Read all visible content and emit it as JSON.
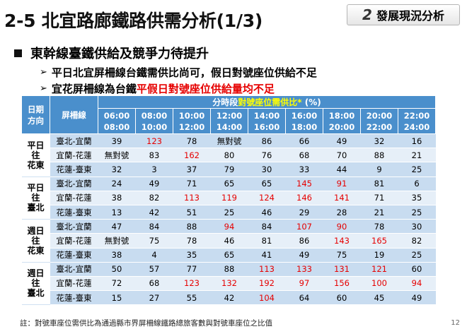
{
  "title": "2-5 北宜路廊鐵路供需分析(1/3)",
  "badge": {
    "number": "2",
    "label": "發展現況分析"
  },
  "bullet_main": "東幹線臺鐵供給及競爭力待提升",
  "bullets": [
    {
      "text": "平日北宜屏柵線台鐵需供比尚可，假日對號座位供給不足",
      "highlight": ""
    },
    {
      "text": "宜花屏柵線為台鐵",
      "highlight": "平假日對號座位供給量均不足"
    }
  ],
  "table": {
    "col_group": "日期\n方向",
    "col_screen": "屏柵線",
    "super_header_prefix": "分時段",
    "super_header_highlight": "對號座位需供比*",
    "super_header_suffix": " (%)",
    "times": [
      "06:00\n08:00",
      "08:00\n10:00",
      "10:00\n12:00",
      "12:00\n14:00",
      "14:00\n16:00",
      "16:00\n18:00",
      "18:00\n20:00",
      "20:00\n22:00",
      "22:00\n24:00"
    ],
    "groups": [
      {
        "label": "平日\n往\n花東",
        "rows": [
          {
            "screen": "臺北-宜蘭",
            "values": [
              "39",
              "123",
              "78",
              "無對號",
              "86",
              "66",
              "49",
              "32",
              "16"
            ],
            "highlight": [
              1
            ]
          },
          {
            "screen": "宜蘭-花蓮",
            "values": [
              "無對號",
              "83",
              "162",
              "80",
              "76",
              "68",
              "70",
              "88",
              "21"
            ],
            "highlight": [
              2
            ]
          },
          {
            "screen": "花蓮-臺東",
            "values": [
              "32",
              "3",
              "37",
              "79",
              "30",
              "33",
              "44",
              "9",
              "25"
            ],
            "highlight": []
          }
        ]
      },
      {
        "label": "平日\n往\n臺北",
        "rows": [
          {
            "screen": "臺北-宜蘭",
            "values": [
              "24",
              "49",
              "71",
              "65",
              "65",
              "145",
              "91",
              "81",
              "6"
            ],
            "highlight": [
              5,
              6
            ]
          },
          {
            "screen": "宜蘭-花蓮",
            "values": [
              "38",
              "82",
              "113",
              "119",
              "124",
              "146",
              "141",
              "71",
              "35"
            ],
            "highlight": [
              2,
              3,
              4,
              5,
              6
            ]
          },
          {
            "screen": "花蓮-臺東",
            "values": [
              "13",
              "42",
              "51",
              "25",
              "46",
              "29",
              "28",
              "21",
              "25"
            ],
            "highlight": []
          }
        ]
      },
      {
        "label": "週日\n往\n花東",
        "rows": [
          {
            "screen": "臺北-宜蘭",
            "values": [
              "47",
              "84",
              "88",
              "94",
              "84",
              "107",
              "90",
              "78",
              "30"
            ],
            "highlight": [
              3,
              5,
              6
            ]
          },
          {
            "screen": "宜蘭-花蓮",
            "values": [
              "無對號",
              "75",
              "78",
              "46",
              "81",
              "86",
              "143",
              "165",
              "82"
            ],
            "highlight": [
              6,
              7
            ]
          },
          {
            "screen": "花蓮-臺東",
            "values": [
              "38",
              "4",
              "35",
              "65",
              "41",
              "49",
              "75",
              "19",
              "25"
            ],
            "highlight": []
          }
        ]
      },
      {
        "label": "週日\n往\n臺北",
        "rows": [
          {
            "screen": "臺北-宜蘭",
            "values": [
              "50",
              "57",
              "77",
              "88",
              "113",
              "133",
              "131",
              "121",
              "60"
            ],
            "highlight": [
              4,
              5,
              6,
              7
            ]
          },
          {
            "screen": "宜蘭-花蓮",
            "values": [
              "72",
              "68",
              "123",
              "132",
              "192",
              "97",
              "156",
              "100",
              "94"
            ],
            "highlight": [
              2,
              3,
              4,
              5,
              6,
              7,
              8
            ]
          },
          {
            "screen": "花蓮-臺東",
            "values": [
              "15",
              "27",
              "55",
              "42",
              "104",
              "64",
              "60",
              "45",
              "49"
            ],
            "highlight": [
              4
            ]
          }
        ]
      }
    ]
  },
  "footnote": "註：對號車座位需供比為通過縣市界屏柵線鐵路總旅客數與對號車座位之比值",
  "page_number": "12",
  "colors": {
    "header_blue": "#4a8fcc",
    "row_dark": "#c8dcf0",
    "row_light": "#e6eff8",
    "highlight_red": "#e60000",
    "header_yellow": "#ffff00"
  }
}
